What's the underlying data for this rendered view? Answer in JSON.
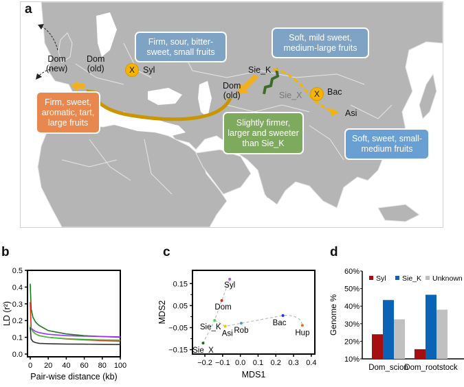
{
  "panel_labels": {
    "a": "a",
    "b": "b",
    "c": "c",
    "d": "d"
  },
  "map": {
    "places": {
      "dom_new": "Dom\n(new)",
      "dom_old_europe": "Dom\n(old)",
      "syl": "Syl",
      "sie_k": "Sie_K",
      "dom_old_asia": "Dom\n(old)",
      "sie_x": "Sie_X",
      "bac": "Bac",
      "asi": "Asi",
      "x_marker": "X"
    },
    "callouts": {
      "syl_fruit": {
        "text": "Firm, sour, bitter-\nsweet, small fruits",
        "color": "#7ea3c4"
      },
      "sie_k_fruit": {
        "text": "Soft, mild sweet,\nmedium-large fruits",
        "color": "#7ea3c4"
      },
      "dom_new_fruit": {
        "text": "Firm, sweet,\naromatic, tart,\nlarge fruits",
        "color": "#e8874e"
      },
      "dom_old_fruit": {
        "text": "Slightly firmer,\nlarger and sweeter\nthan Sie_K",
        "color": "#7eaa5e"
      },
      "asi_fruit": {
        "text": "Soft, sweet, small-\nmedium fruits",
        "color": "#6a9fd4"
      }
    },
    "colors": {
      "land": "#b5b5b5",
      "border": "#e8e8e8",
      "arrow": "#f0b020",
      "arc": "#c99500",
      "dashed": "#f4b400",
      "sie_x_region": "#3e6b2a"
    }
  },
  "chart_data": [
    {
      "id": "b",
      "type": "line",
      "title": "",
      "xlabel": "Pair-wise distance (kb)",
      "ylabel": "LD (r²)",
      "xlim": [
        0,
        100
      ],
      "ylim": [
        0.0,
        0.5
      ],
      "xticks": [
        0,
        20,
        40,
        60,
        80,
        100
      ],
      "yticks": [
        0.0,
        0.1,
        0.2,
        0.3,
        0.4,
        0.5
      ],
      "ytick_labels": [
        "0.0",
        "0.1",
        "0.2",
        "0.3",
        "0.4",
        "0.5"
      ],
      "series": [
        {
          "name": "darkgreen",
          "color": "#1a7a1a",
          "x": [
            0,
            1,
            3,
            6,
            10,
            20,
            40,
            60,
            80,
            100
          ],
          "y": [
            0.42,
            0.27,
            0.22,
            0.19,
            0.17,
            0.14,
            0.12,
            0.11,
            0.105,
            0.1
          ]
        },
        {
          "name": "red",
          "color": "#e8261b",
          "x": [
            0,
            1,
            3,
            6,
            10,
            20,
            40,
            60,
            80,
            100
          ],
          "y": [
            0.31,
            0.15,
            0.135,
            0.12,
            0.11,
            0.1,
            0.09,
            0.085,
            0.08,
            0.077
          ]
        },
        {
          "name": "purple",
          "color": "#9b30ff",
          "x": [
            0,
            1,
            3,
            6,
            10,
            20,
            40,
            60,
            80,
            100
          ],
          "y": [
            0.17,
            0.155,
            0.145,
            0.135,
            0.128,
            0.118,
            0.11,
            0.107,
            0.105,
            0.103
          ]
        },
        {
          "name": "lightgreen",
          "color": "#3ec13e",
          "x": [
            0,
            1,
            3,
            6,
            10,
            20,
            40,
            60,
            80,
            100
          ],
          "y": [
            0.17,
            0.15,
            0.135,
            0.12,
            0.11,
            0.1,
            0.092,
            0.088,
            0.085,
            0.083
          ]
        },
        {
          "name": "black",
          "color": "#333333",
          "x": [
            0,
            1,
            3,
            6,
            10,
            20,
            40,
            60,
            80,
            100
          ],
          "y": [
            0.16,
            0.09,
            0.075,
            0.068,
            0.064,
            0.062,
            0.06,
            0.059,
            0.058,
            0.057
          ]
        }
      ]
    },
    {
      "id": "c",
      "type": "scatter",
      "title": "",
      "xlabel": "MDS1",
      "ylabel": "MDS2",
      "xlim": [
        -0.27,
        0.42
      ],
      "ylim": [
        -0.17,
        0.21
      ],
      "xticks": [
        -0.2,
        -0.1,
        0.0,
        0.1,
        0.2,
        0.3,
        0.4
      ],
      "xtick_labels": [
        "−0.2",
        "−0.1",
        "0.0",
        "0.1",
        "0.2",
        "0.3",
        "0.4"
      ],
      "yticks": [
        -0.15,
        -0.05,
        0.05,
        0.15
      ],
      "ytick_labels": [
        "−0.15",
        "−0.05",
        "0.05",
        "0.15"
      ],
      "points": [
        {
          "label": "Syl",
          "x": -0.06,
          "y": 0.17,
          "color": "#b05ad8"
        },
        {
          "label": "Dom",
          "x": -0.105,
          "y": 0.073,
          "color": "#e8261b"
        },
        {
          "label": "Sie_K",
          "x": -0.145,
          "y": -0.017,
          "color": "#3ee03e"
        },
        {
          "label": "Asi",
          "x": -0.085,
          "y": -0.044,
          "color": "#f4c400"
        },
        {
          "label": "Rob",
          "x": 0.005,
          "y": -0.03,
          "color": "#3aa0f0"
        },
        {
          "label": "Bac",
          "x": 0.24,
          "y": 0.005,
          "color": "#1a3ad8"
        },
        {
          "label": "Hup",
          "x": 0.35,
          "y": -0.04,
          "color": "#e07020"
        },
        {
          "label": "Sie_X",
          "x": -0.21,
          "y": -0.12,
          "color": "#1a6a1a"
        }
      ],
      "trajectories": [
        [
          "Syl",
          "Dom",
          "Sie_K",
          "Sie_X"
        ],
        [
          "Sie_K",
          "Asi",
          "Rob",
          "Bac",
          "Hup"
        ]
      ]
    },
    {
      "id": "d",
      "type": "bar",
      "title": "",
      "xlabel": "",
      "ylabel": "Genome %",
      "ylim": [
        10,
        60
      ],
      "yticks": [
        10,
        20,
        30,
        40,
        50,
        60
      ],
      "ytick_labels": [
        "10%",
        "20%",
        "30%",
        "40%",
        "50%",
        "60%"
      ],
      "categories": [
        "Dom_scion",
        "Dom_rootstock"
      ],
      "legend_position": "top",
      "series": [
        {
          "name": "Syl",
          "color": "#a50f0f",
          "values": [
            24,
            15.5
          ]
        },
        {
          "name": "Sie_K",
          "color": "#0a63b5",
          "values": [
            43.5,
            46.5
          ]
        },
        {
          "name": "Unknown",
          "color": "#c0c0c0",
          "values": [
            32.5,
            38
          ]
        }
      ]
    }
  ]
}
